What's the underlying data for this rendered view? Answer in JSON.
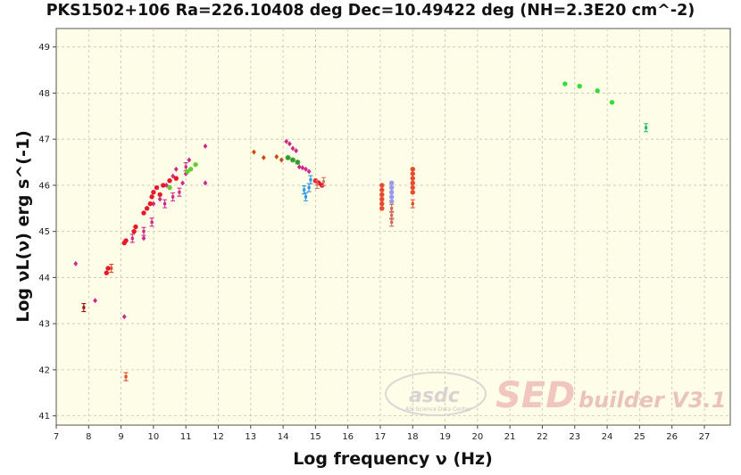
{
  "chart_data": {
    "type": "scatter",
    "title": "PKS1502+106 Ra=226.10408 deg Dec=10.49422 deg (NH=2.3E20 cm^-2)",
    "xlabel": "Log frequency ν (Hz)",
    "ylabel": "Log νL(ν) erg s^(-1)",
    "xlim": [
      7,
      27.8
    ],
    "ylim": [
      40.8,
      49.4
    ],
    "xticks": [
      7,
      8,
      9,
      10,
      11,
      12,
      13,
      14,
      15,
      16,
      17,
      18,
      19,
      20,
      21,
      22,
      23,
      24,
      25,
      26,
      27
    ],
    "yticks": [
      41,
      42,
      43,
      44,
      45,
      46,
      47,
      48,
      49
    ],
    "grid": true,
    "background": "#fdfde8",
    "watermark": {
      "logo": "asdc",
      "logo_subtitle": "ASI Science Data Center",
      "product": "SED",
      "product_suffix": "builder V3.1"
    },
    "series": [
      {
        "color": "#cc2a8a",
        "marker": "diamond",
        "points": [
          [
            7.6,
            44.3
          ],
          [
            8.2,
            43.5
          ],
          [
            9.1,
            43.15
          ],
          [
            9.7,
            44.85
          ],
          [
            10.0,
            45.6
          ],
          [
            10.2,
            45.7
          ],
          [
            10.4,
            46.0
          ],
          [
            10.5,
            45.95
          ],
          [
            10.6,
            46.2
          ],
          [
            10.7,
            46.35
          ],
          [
            10.9,
            46.05
          ],
          [
            11.0,
            46.25
          ],
          [
            11.1,
            46.55
          ],
          [
            11.6,
            46.85
          ],
          [
            11.6,
            46.05
          ],
          [
            14.1,
            46.95
          ],
          [
            14.2,
            46.9
          ],
          [
            14.3,
            46.8
          ],
          [
            14.4,
            46.75
          ],
          [
            14.5,
            46.4
          ],
          [
            14.6,
            46.38
          ],
          [
            14.7,
            46.35
          ],
          [
            14.8,
            46.3
          ]
        ]
      },
      {
        "color": "#e8182a",
        "marker": "circle",
        "points": [
          [
            8.55,
            44.1
          ],
          [
            8.6,
            44.2
          ],
          [
            9.1,
            44.75
          ],
          [
            9.15,
            44.8
          ],
          [
            9.4,
            45.0
          ],
          [
            9.45,
            45.1
          ],
          [
            9.7,
            45.4
          ],
          [
            9.8,
            45.5
          ],
          [
            9.9,
            45.6
          ],
          [
            9.95,
            45.75
          ],
          [
            10.0,
            45.85
          ],
          [
            10.1,
            45.95
          ],
          [
            10.2,
            45.8
          ],
          [
            10.3,
            46.0
          ],
          [
            10.5,
            46.1
          ],
          [
            10.7,
            46.15
          ],
          [
            15.0,
            46.1
          ],
          [
            15.1,
            46.05
          ],
          [
            15.2,
            46.0
          ]
        ]
      },
      {
        "color": "#cc2a8a",
        "marker": "errorbar",
        "points": [
          [
            9.35,
            44.85
          ],
          [
            9.7,
            45.0
          ],
          [
            9.95,
            45.2
          ],
          [
            10.35,
            45.6
          ],
          [
            10.6,
            45.75
          ],
          [
            10.8,
            45.85
          ],
          [
            11.0,
            46.4
          ]
        ]
      },
      {
        "color": "#9a1414",
        "marker": "errorbar",
        "points": [
          [
            7.85,
            43.35
          ]
        ]
      },
      {
        "color": "#e04a2a",
        "marker": "errorbar",
        "points": [
          [
            8.7,
            44.2
          ],
          [
            9.15,
            41.85
          ],
          [
            18.0,
            45.6
          ]
        ]
      },
      {
        "color": "#66cc33",
        "marker": "circle",
        "points": [
          [
            10.5,
            45.95
          ],
          [
            11.05,
            46.3
          ],
          [
            11.15,
            46.35
          ],
          [
            11.3,
            46.45
          ]
        ]
      },
      {
        "color": "#2a9a2a",
        "marker": "star",
        "points": [
          [
            14.15,
            46.6
          ],
          [
            14.3,
            46.55
          ],
          [
            14.45,
            46.5
          ]
        ]
      },
      {
        "color": "#cc4a10",
        "marker": "diamond",
        "points": [
          [
            13.1,
            46.72
          ],
          [
            13.4,
            46.6
          ],
          [
            13.8,
            46.62
          ],
          [
            13.95,
            46.55
          ]
        ]
      },
      {
        "color": "#2a9ae8",
        "marker": "errorbar",
        "points": [
          [
            14.65,
            45.9
          ],
          [
            14.7,
            45.75
          ],
          [
            14.8,
            45.95
          ],
          [
            14.85,
            46.12
          ]
        ]
      },
      {
        "color": "#d67a6a",
        "marker": "errorbar",
        "points": [
          [
            15.05,
            46.02
          ],
          [
            15.25,
            46.08
          ]
        ]
      },
      {
        "color": "#e84a30",
        "marker": "circle",
        "points": [
          [
            17.05,
            45.5
          ],
          [
            17.05,
            45.6
          ],
          [
            17.05,
            45.7
          ],
          [
            17.05,
            45.8
          ],
          [
            17.05,
            45.9
          ],
          [
            17.05,
            46.0
          ],
          [
            18.0,
            45.85
          ],
          [
            18.0,
            45.95
          ],
          [
            18.0,
            46.05
          ],
          [
            18.0,
            46.15
          ],
          [
            18.0,
            46.25
          ],
          [
            18.0,
            46.35
          ]
        ]
      },
      {
        "color": "#9999ee",
        "marker": "circle",
        "points": [
          [
            17.35,
            45.65
          ],
          [
            17.35,
            45.75
          ],
          [
            17.35,
            45.85
          ],
          [
            17.35,
            45.95
          ],
          [
            17.35,
            46.05
          ]
        ]
      },
      {
        "color": "#d06a5a",
        "marker": "errorbar",
        "points": [
          [
            17.35,
            45.2
          ],
          [
            17.35,
            45.35
          ],
          [
            17.35,
            45.5
          ]
        ]
      },
      {
        "color": "#33dd33",
        "marker": "circle",
        "points": [
          [
            22.7,
            48.2
          ],
          [
            23.15,
            48.15
          ],
          [
            23.7,
            48.05
          ],
          [
            24.15,
            47.8
          ]
        ]
      },
      {
        "color": "#22bb66",
        "marker": "errorbar",
        "points": [
          [
            25.2,
            47.25
          ]
        ]
      }
    ]
  }
}
